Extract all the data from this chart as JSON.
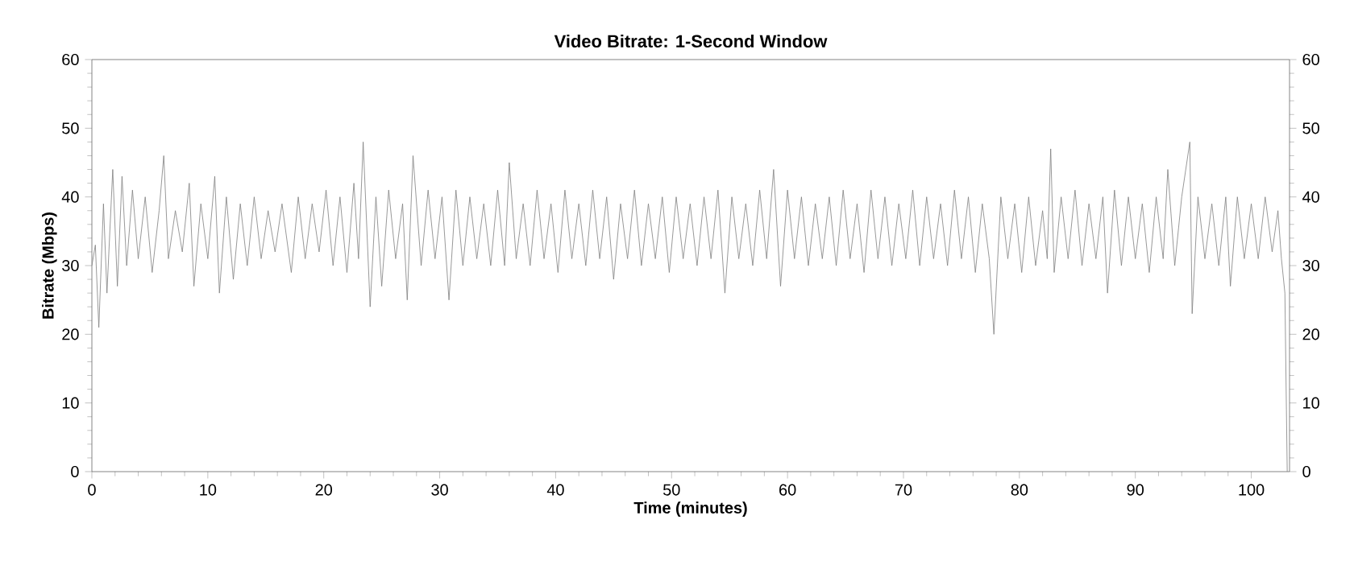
{
  "chart_data": {
    "type": "line",
    "title": "Video Bitrate: 1-Second Window",
    "xlabel": "Time (minutes)",
    "ylabel": "Bitrate (Mbps)",
    "xlim": [
      0,
      103.3
    ],
    "xticks": [
      0,
      10,
      20,
      30,
      40,
      50,
      60,
      70,
      80,
      90,
      100
    ],
    "ylim": [
      0,
      60
    ],
    "yticks": [
      0,
      10,
      20,
      30,
      40,
      50,
      60
    ],
    "y2lim": [
      0,
      60
    ],
    "y2ticks": [
      0,
      10,
      20,
      30,
      40,
      50,
      60
    ],
    "marker": "none",
    "line_style": "solid",
    "series": [
      {
        "color": "#7f7f7f",
        "x": [
          0,
          0.3,
          0.6,
          1.0,
          1.3,
          1.8,
          2.2,
          2.6,
          3.0,
          3.5,
          4.0,
          4.6,
          5.2,
          5.8,
          6.2,
          6.6,
          7.2,
          7.8,
          8.4,
          8.8,
          9.4,
          10.0,
          10.6,
          11.0,
          11.6,
          12.2,
          12.8,
          13.4,
          14.0,
          14.6,
          15.2,
          15.8,
          16.4,
          17.2,
          17.8,
          18.4,
          19.0,
          19.6,
          20.2,
          20.8,
          21.4,
          22.0,
          22.6,
          23.0,
          23.4,
          24.0,
          24.5,
          25.0,
          25.6,
          26.2,
          26.8,
          27.2,
          27.7,
          28.4,
          29.0,
          29.6,
          30.2,
          30.8,
          31.4,
          32.0,
          32.6,
          33.2,
          33.8,
          34.4,
          35.0,
          35.6,
          36.0,
          36.6,
          37.2,
          37.8,
          38.4,
          39.0,
          39.6,
          40.2,
          40.8,
          41.4,
          42.0,
          42.6,
          43.2,
          43.8,
          44.4,
          45.0,
          45.6,
          46.2,
          46.8,
          47.4,
          48.0,
          48.6,
          49.2,
          49.8,
          50.4,
          51.0,
          51.6,
          52.2,
          52.8,
          53.4,
          54.0,
          54.6,
          55.2,
          55.8,
          56.4,
          57.0,
          57.6,
          58.2,
          58.8,
          59.4,
          60.0,
          60.6,
          61.2,
          61.8,
          62.4,
          63.0,
          63.6,
          64.2,
          64.8,
          65.4,
          66.0,
          66.6,
          67.2,
          67.8,
          68.4,
          69.0,
          69.6,
          70.2,
          70.8,
          71.4,
          72.0,
          72.6,
          73.2,
          73.8,
          74.4,
          75.0,
          75.6,
          76.2,
          76.8,
          77.4,
          77.8,
          78.4,
          79.0,
          79.6,
          80.2,
          80.8,
          81.4,
          82.0,
          82.4,
          82.7,
          83.0,
          83.6,
          84.2,
          84.8,
          85.4,
          86.0,
          86.6,
          87.2,
          87.6,
          88.2,
          88.8,
          89.4,
          90.0,
          90.6,
          91.2,
          91.8,
          92.4,
          92.8,
          93.4,
          94.0,
          94.7,
          94.9,
          95.4,
          96.0,
          96.6,
          97.2,
          97.8,
          98.2,
          98.8,
          99.4,
          100.0,
          100.6,
          101.2,
          101.8,
          102.3,
          102.6,
          102.9,
          103.1
        ],
        "values": [
          30,
          33,
          21,
          39,
          26,
          44,
          27,
          43,
          30,
          41,
          31,
          40,
          29,
          38,
          46,
          31,
          38,
          32,
          42,
          27,
          39,
          31,
          43,
          26,
          40,
          28,
          39,
          30,
          40,
          31,
          38,
          32,
          39,
          29,
          40,
          31,
          39,
          32,
          41,
          30,
          40,
          29,
          42,
          31,
          48,
          24,
          40,
          27,
          41,
          31,
          39,
          25,
          46,
          30,
          41,
          31,
          40,
          25,
          41,
          30,
          40,
          31,
          39,
          30,
          41,
          30,
          45,
          31,
          39,
          30,
          41,
          31,
          39,
          29,
          41,
          31,
          39,
          30,
          41,
          31,
          40,
          28,
          39,
          31,
          41,
          30,
          39,
          31,
          40,
          29,
          40,
          31,
          39,
          30,
          40,
          31,
          41,
          26,
          40,
          31,
          39,
          30,
          41,
          31,
          44,
          27,
          41,
          31,
          40,
          30,
          39,
          31,
          40,
          30,
          41,
          31,
          39,
          29,
          41,
          31,
          40,
          30,
          39,
          31,
          41,
          30,
          40,
          31,
          39,
          30,
          41,
          31,
          40,
          29,
          39,
          31,
          20,
          40,
          31,
          39,
          29,
          40,
          30,
          38,
          31,
          47,
          29,
          40,
          31,
          41,
          30,
          39,
          31,
          40,
          26,
          41,
          30,
          40,
          31,
          39,
          29,
          40,
          31,
          44,
          30,
          40,
          48,
          23,
          40,
          31,
          39,
          30,
          40,
          27,
          40,
          31,
          39,
          31,
          40,
          32,
          38,
          31,
          26,
          0
        ]
      }
    ]
  }
}
